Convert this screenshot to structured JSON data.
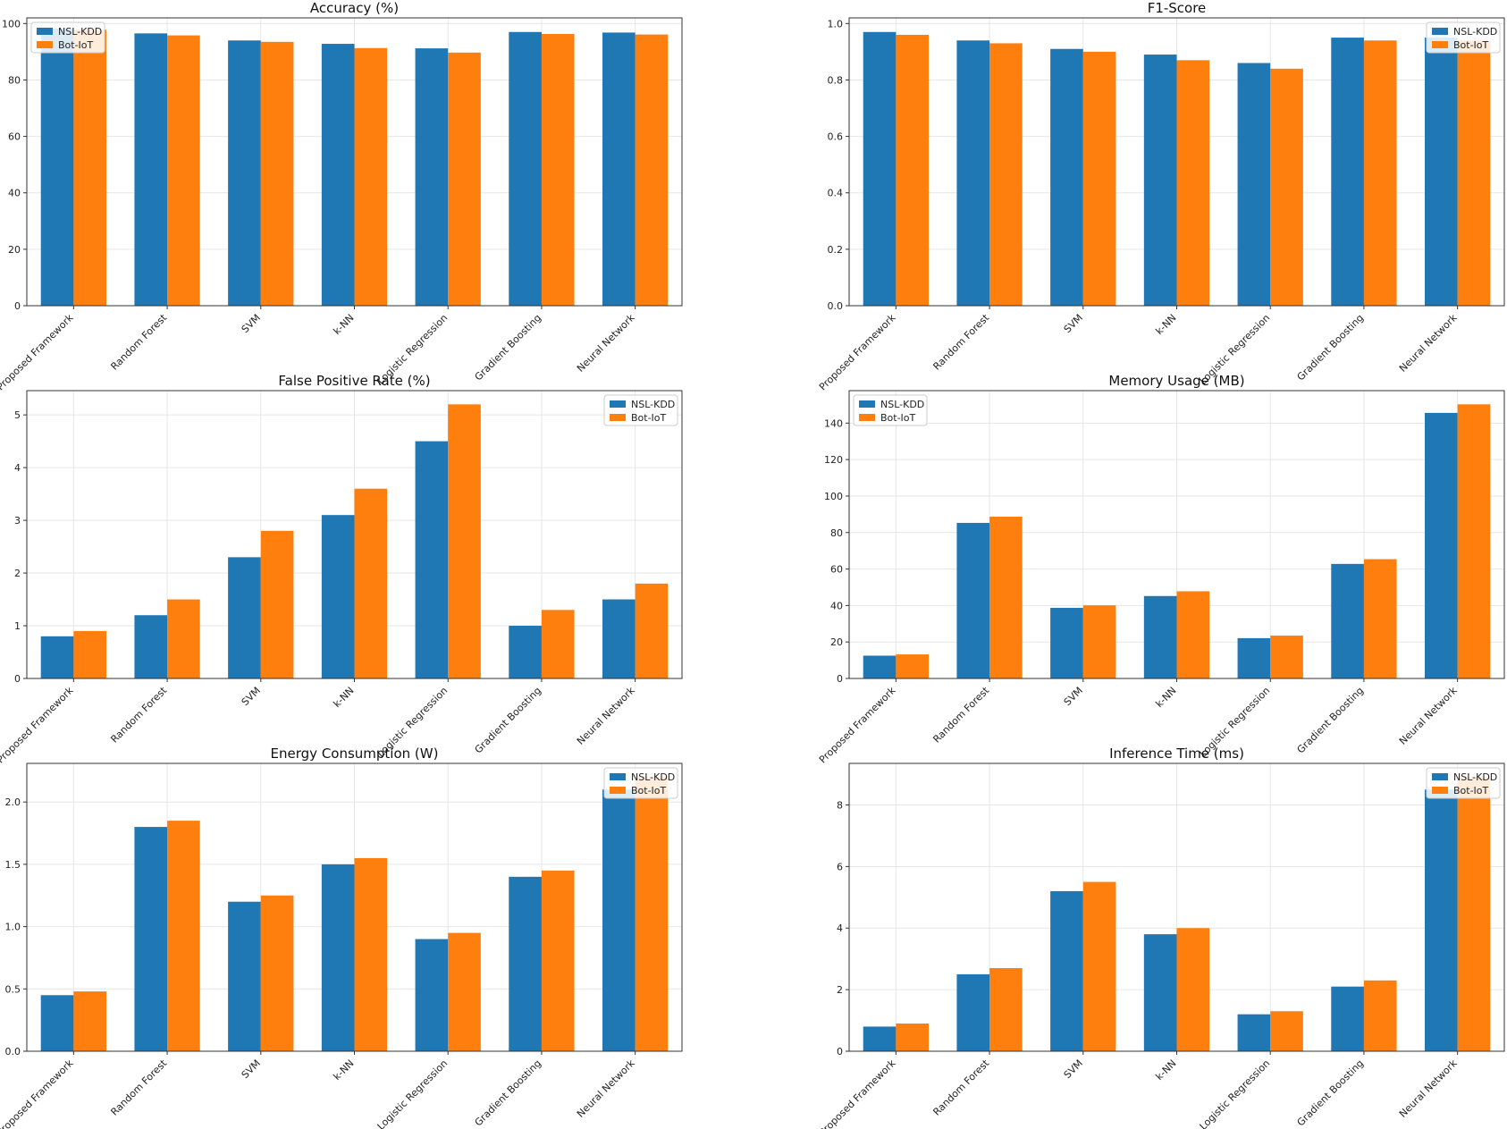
{
  "colors": {
    "nsl_kdd": "#1f77b4",
    "bot_iot": "#ff7f0e",
    "grid": "#e6e6e6",
    "axis": "#333333"
  },
  "legend_labels": [
    "NSL-KDD",
    "Bot-IoT"
  ],
  "chart_data": [
    {
      "type": "bar",
      "title": "Accuracy (%)",
      "categories": [
        "Proposed Framework",
        "Random Forest",
        "SVM",
        "k-NN",
        "Logistic Regression",
        "Gradient Boosting",
        "Neural Network"
      ],
      "series": [
        {
          "name": "NSL-KDD",
          "values": [
            98.2,
            96.5,
            94.0,
            92.8,
            91.2,
            97.0,
            96.8
          ]
        },
        {
          "name": "Bot-IoT",
          "values": [
            97.8,
            95.8,
            93.5,
            91.3,
            89.7,
            96.3,
            96.1
          ]
        }
      ],
      "ylim": [
        0,
        102
      ],
      "yticks": [
        0,
        20,
        40,
        60,
        80,
        100
      ],
      "ytick_labels": [
        "0",
        "20",
        "40",
        "60",
        "80",
        "100"
      ],
      "legend": "top-left",
      "grid": true
    },
    {
      "type": "bar",
      "title": "F1-Score",
      "categories": [
        "Proposed Framework",
        "Random Forest",
        "SVM",
        "k-NN",
        "Logistic Regression",
        "Gradient Boosting",
        "Neural Network"
      ],
      "series": [
        {
          "name": "NSL-KDD",
          "values": [
            0.97,
            0.94,
            0.91,
            0.89,
            0.86,
            0.95,
            0.95
          ]
        },
        {
          "name": "Bot-IoT",
          "values": [
            0.96,
            0.93,
            0.9,
            0.87,
            0.84,
            0.94,
            0.94
          ]
        }
      ],
      "ylim": [
        0,
        1.02
      ],
      "yticks": [
        0,
        0.2,
        0.4,
        0.6,
        0.8,
        1.0
      ],
      "ytick_labels": [
        "0.0",
        "0.2",
        "0.4",
        "0.6",
        "0.8",
        "1.0"
      ],
      "legend": "top-right",
      "grid": true
    },
    {
      "type": "bar",
      "title": "False Positive Rate (%)",
      "categories": [
        "Proposed Framework",
        "Random Forest",
        "SVM",
        "k-NN",
        "Logistic Regression",
        "Gradient Boosting",
        "Neural Network"
      ],
      "series": [
        {
          "name": "NSL-KDD",
          "values": [
            0.8,
            1.2,
            2.3,
            3.1,
            4.5,
            1.0,
            1.5
          ]
        },
        {
          "name": "Bot-IoT",
          "values": [
            0.9,
            1.5,
            2.8,
            3.6,
            5.2,
            1.3,
            1.8
          ]
        }
      ],
      "ylim": [
        0,
        5.46
      ],
      "yticks": [
        0,
        1,
        2,
        3,
        4,
        5
      ],
      "ytick_labels": [
        "0",
        "1",
        "2",
        "3",
        "4",
        "5"
      ],
      "legend": "top-right",
      "grid": true
    },
    {
      "type": "bar",
      "title": "Memory Usage (MB)",
      "categories": [
        "Proposed Framework",
        "Random Forest",
        "SVM",
        "k-NN",
        "Logistic Regression",
        "Gradient Boosting",
        "Neural Network"
      ],
      "series": [
        {
          "name": "NSL-KDD",
          "values": [
            12.5,
            85.3,
            38.7,
            45.2,
            22.1,
            62.8,
            145.6
          ]
        },
        {
          "name": "Bot-IoT",
          "values": [
            13.2,
            88.7,
            40.1,
            47.8,
            23.5,
            65.4,
            150.3
          ]
        }
      ],
      "ylim": [
        0,
        157.8
      ],
      "yticks": [
        0,
        20,
        40,
        60,
        80,
        100,
        120,
        140
      ],
      "ytick_labels": [
        "0",
        "20",
        "40",
        "60",
        "80",
        "100",
        "120",
        "140"
      ],
      "legend": "top-left",
      "grid": true
    },
    {
      "type": "bar",
      "title": "Energy Consumption (W)",
      "categories": [
        "Proposed Framework",
        "Random Forest",
        "SVM",
        "k-NN",
        "Logistic Regression",
        "Gradient Boosting",
        "Neural Network"
      ],
      "series": [
        {
          "name": "NSL-KDD",
          "values": [
            0.45,
            1.8,
            1.2,
            1.5,
            0.9,
            1.4,
            2.1
          ]
        },
        {
          "name": "Bot-IoT",
          "values": [
            0.48,
            1.85,
            1.25,
            1.55,
            0.95,
            1.45,
            2.2
          ]
        }
      ],
      "ylim": [
        0,
        2.31
      ],
      "yticks": [
        0,
        0.5,
        1.0,
        1.5,
        2.0
      ],
      "ytick_labels": [
        "0.0",
        "0.5",
        "1.0",
        "1.5",
        "2.0"
      ],
      "legend": "top-right",
      "grid": true
    },
    {
      "type": "bar",
      "title": "Inference Time (ms)",
      "categories": [
        "Proposed Framework",
        "Random Forest",
        "SVM",
        "k-NN",
        "Logistic Regression",
        "Gradient Boosting",
        "Neural Network"
      ],
      "series": [
        {
          "name": "NSL-KDD",
          "values": [
            0.8,
            2.5,
            5.2,
            3.8,
            1.2,
            2.1,
            8.5
          ]
        },
        {
          "name": "Bot-IoT",
          "values": [
            0.9,
            2.7,
            5.5,
            4.0,
            1.3,
            2.3,
            8.9
          ]
        }
      ],
      "ylim": [
        0,
        9.35
      ],
      "yticks": [
        0,
        2,
        4,
        6,
        8
      ],
      "ytick_labels": [
        "0",
        "2",
        "4",
        "6",
        "8"
      ],
      "legend": "top-right",
      "grid": true
    }
  ]
}
